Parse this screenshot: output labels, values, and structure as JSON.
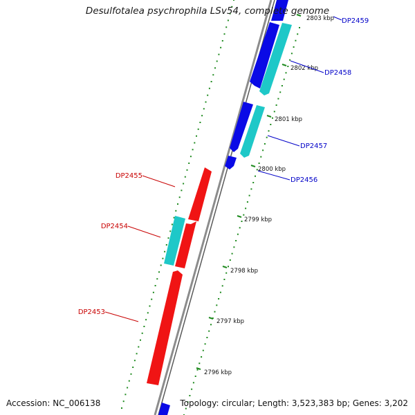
{
  "title": "Desulfotalea psychrophila LSv54, complete genome",
  "footer": {
    "accession": "Accession: NC_006138",
    "topology": "Topology: circular; Length: 3,523,383 bp; Genes: 3,202"
  },
  "colors": {
    "forward_strand": "#0a0ae6",
    "cds_alt": "#1ec8c8",
    "reverse_strand": "#f01414",
    "backbone": "#8c8c8c",
    "tick": "#1e8a1e",
    "label_forward": "#0000c8",
    "label_reverse": "#c80000"
  },
  "ticks": [
    {
      "label": "2796 kbp"
    },
    {
      "label": "2797 kbp"
    },
    {
      "label": "2798 kbp"
    },
    {
      "label": "2799 kbp"
    },
    {
      "label": "2800 kbp"
    },
    {
      "label": "2801 kbp"
    },
    {
      "label": "2802 kbp"
    },
    {
      "label": "2803 kbp"
    }
  ],
  "genes": [
    {
      "name": "DP2459",
      "strand": "forward"
    },
    {
      "name": "DP2458",
      "strand": "forward"
    },
    {
      "name": "DP2457",
      "strand": "forward"
    },
    {
      "name": "DP2456",
      "strand": "forward"
    },
    {
      "name": "DP2455",
      "strand": "reverse"
    },
    {
      "name": "DP2454",
      "strand": "reverse"
    },
    {
      "name": "DP2453",
      "strand": "reverse"
    }
  ]
}
